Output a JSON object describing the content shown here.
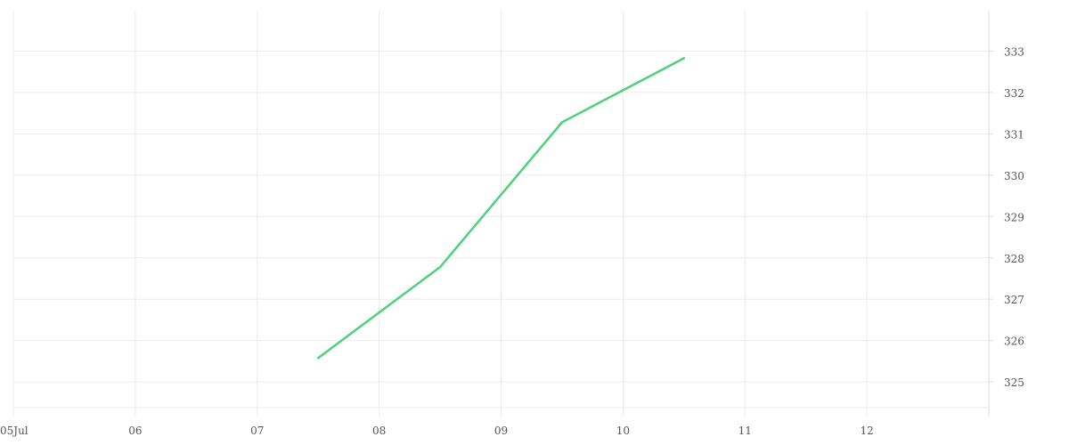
{
  "chart_data": {
    "type": "line",
    "title": "",
    "xlabel": "",
    "ylabel": "",
    "x_axis": {
      "type": "date",
      "range": [
        "2024-07-05",
        "2024-07-13"
      ],
      "tick_labels": [
        "05Jul",
        "06",
        "07",
        "08",
        "09",
        "10",
        "11",
        "12"
      ]
    },
    "y_axis": {
      "position": "right",
      "range": [
        324.4,
        334.0
      ],
      "ticks": [
        325,
        326,
        327,
        328,
        329,
        330,
        331,
        332,
        333
      ]
    },
    "grid": true,
    "series": [
      {
        "color": "#4fd17c",
        "points": [
          {
            "x": "2024-07-07T12:00",
            "y": 325.6
          },
          {
            "x": "2024-07-08T12:00",
            "y": 327.8
          },
          {
            "x": "2024-07-09T12:00",
            "y": 331.3
          },
          {
            "x": "2024-07-10T12:00",
            "y": 332.85
          }
        ]
      }
    ]
  }
}
